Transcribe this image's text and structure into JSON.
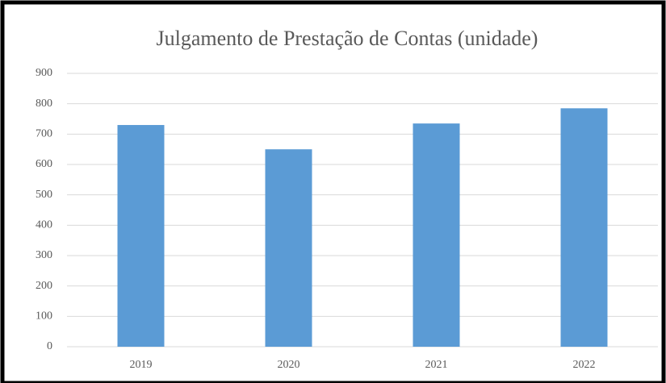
{
  "chart_data": {
    "type": "bar",
    "title": "Julgamento de Prestação de Contas (unidade)",
    "categories": [
      "2019",
      "2020",
      "2021",
      "2022"
    ],
    "values": [
      730,
      650,
      735,
      785
    ],
    "color": "#5b9bd5",
    "ylim": [
      0,
      900
    ],
    "yticks": [
      0,
      100,
      200,
      300,
      400,
      500,
      600,
      700,
      800,
      900
    ],
    "grid": true
  }
}
